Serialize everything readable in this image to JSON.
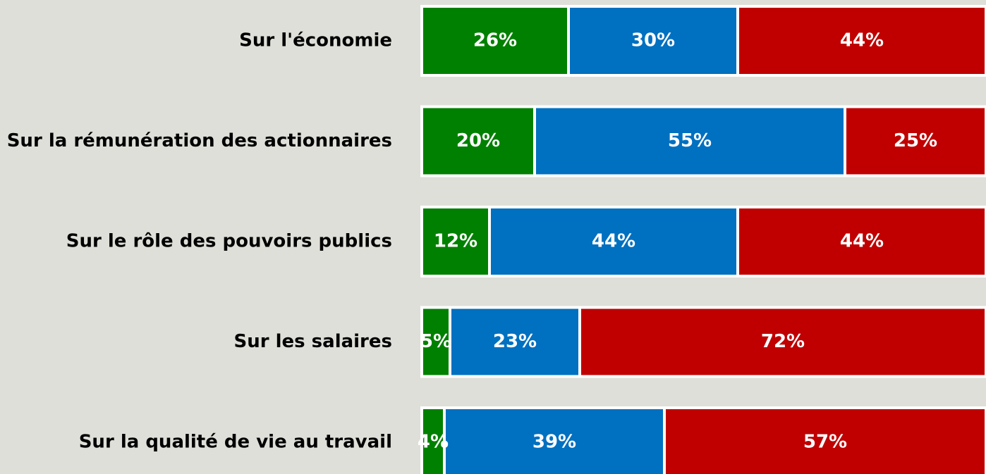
{
  "chart_data": {
    "type": "stacked-bar-horizontal",
    "categories": [
      "Sur l'économie",
      "Sur la rémunération des actionnaires",
      "Sur le rôle des pouvoirs publics",
      "Sur les salaires",
      "Sur la qualité de vie au travail"
    ],
    "series": [
      {
        "color": "#008000",
        "values": [
          26,
          20,
          12,
          5,
          4
        ],
        "value_labels": [
          "26%",
          "20%",
          "12%",
          "5%",
          "4%"
        ]
      },
      {
        "color": "#0070c0",
        "values": [
          30,
          55,
          44,
          23,
          39
        ],
        "value_labels": [
          "30%",
          "55%",
          "44%",
          "23%",
          "39%"
        ]
      },
      {
        "color": "#c00000",
        "values": [
          44,
          25,
          44,
          72,
          57
        ],
        "value_labels": [
          "44%",
          "25%",
          "44%",
          "72%",
          "57%"
        ]
      }
    ],
    "xlim": [
      0,
      100
    ]
  }
}
